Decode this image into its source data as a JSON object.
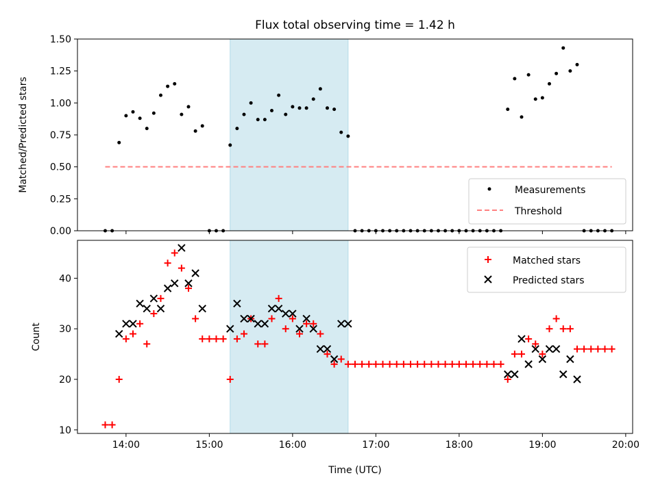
{
  "chart_data": [
    {
      "type": "scatter",
      "title": "Flux total observing time = 1.42 h",
      "xlabel": "",
      "ylabel": "Matched/Predicted stars",
      "ylim": [
        0,
        1.5
      ],
      "xlim": [
        "13:25",
        "20:05"
      ],
      "yticks": [
        "0.00",
        "0.25",
        "0.50",
        "0.75",
        "1.00",
        "1.25",
        "1.50"
      ],
      "yticks_values": [
        0,
        0.25,
        0.5,
        0.75,
        1.0,
        1.25,
        1.5
      ],
      "shaded_span": [
        "15:15",
        "16:40"
      ],
      "shaded_color": "#add8e6",
      "legend_placement": "lower right",
      "series": [
        {
          "name": "Measurements",
          "marker": "dot",
          "color": "#000000",
          "x": [
            "13:45",
            "13:50",
            "13:55",
            "14:00",
            "14:05",
            "14:10",
            "14:15",
            "14:20",
            "14:25",
            "14:30",
            "14:35",
            "14:40",
            "14:45",
            "14:50",
            "14:55",
            "15:00",
            "15:05",
            "15:10",
            "15:15",
            "15:20",
            "15:25",
            "15:30",
            "15:35",
            "15:40",
            "15:45",
            "15:50",
            "15:55",
            "16:00",
            "16:05",
            "16:10",
            "16:15",
            "16:20",
            "16:25",
            "16:30",
            "16:35",
            "16:40",
            "16:45",
            "16:50",
            "16:55",
            "17:00",
            "17:05",
            "17:10",
            "17:15",
            "17:20",
            "17:25",
            "17:30",
            "17:35",
            "17:40",
            "17:45",
            "17:50",
            "17:55",
            "18:00",
            "18:05",
            "18:10",
            "18:15",
            "18:20",
            "18:25",
            "18:30",
            "18:35",
            "18:40",
            "18:45",
            "18:50",
            "18:55",
            "19:00",
            "19:05",
            "19:10",
            "19:15",
            "19:20",
            "19:25",
            "19:30",
            "19:35",
            "19:40",
            "19:45",
            "19:50"
          ],
          "y": [
            0,
            0,
            0.69,
            0.9,
            0.93,
            0.88,
            0.8,
            0.92,
            1.06,
            1.13,
            1.15,
            0.91,
            0.97,
            0.78,
            0.82,
            0,
            0,
            0,
            0.67,
            0.8,
            0.91,
            1.0,
            0.87,
            0.87,
            0.94,
            1.06,
            0.91,
            0.97,
            0.96,
            0.96,
            1.03,
            1.11,
            0.96,
            0.95,
            0.77,
            0.74,
            0,
            0,
            0,
            0,
            0,
            0,
            0,
            0,
            0,
            0,
            0,
            0,
            0,
            0,
            0,
            0,
            0,
            0,
            0,
            0,
            0,
            0,
            0.95,
            1.19,
            0.89,
            1.22,
            1.03,
            1.04,
            1.15,
            1.23,
            1.43,
            1.25,
            1.3,
            0,
            0,
            0,
            0,
            0
          ]
        },
        {
          "name": "Threshold",
          "marker": "dashed-line",
          "color": "#ff7f7f",
          "x": [
            "13:45",
            "19:50"
          ],
          "y": [
            0.5,
            0.5
          ]
        }
      ]
    },
    {
      "type": "scatter",
      "title": "",
      "xlabel": "Time (UTC)",
      "ylabel": "Count",
      "ylim": [
        9.3,
        47.5
      ],
      "xlim": [
        "13:25",
        "20:05"
      ],
      "xticks": [
        "14:00",
        "15:00",
        "16:00",
        "17:00",
        "18:00",
        "19:00",
        "20:00"
      ],
      "yticks": [
        "10",
        "20",
        "30",
        "40"
      ],
      "yticks_values": [
        10,
        20,
        30,
        40
      ],
      "shaded_span": [
        "15:15",
        "16:40"
      ],
      "shaded_color": "#add8e6",
      "legend_placement": "upper right",
      "series": [
        {
          "name": "Matched stars",
          "marker": "plus",
          "color": "#ff0000",
          "x": [
            "13:45",
            "13:50",
            "13:55",
            "14:00",
            "14:05",
            "14:10",
            "14:15",
            "14:20",
            "14:25",
            "14:30",
            "14:35",
            "14:40",
            "14:45",
            "14:50",
            "14:55",
            "15:00",
            "15:05",
            "15:10",
            "15:15",
            "15:20",
            "15:25",
            "15:30",
            "15:35",
            "15:40",
            "15:45",
            "15:50",
            "15:55",
            "16:00",
            "16:05",
            "16:10",
            "16:15",
            "16:20",
            "16:25",
            "16:30",
            "16:35",
            "16:40",
            "16:45",
            "16:50",
            "16:55",
            "17:00",
            "17:05",
            "17:10",
            "17:15",
            "17:20",
            "17:25",
            "17:30",
            "17:35",
            "17:40",
            "17:45",
            "17:50",
            "17:55",
            "18:00",
            "18:05",
            "18:10",
            "18:15",
            "18:20",
            "18:25",
            "18:30",
            "18:35",
            "18:40",
            "18:45",
            "18:50",
            "18:55",
            "19:00",
            "19:05",
            "19:10",
            "19:15",
            "19:20",
            "19:25",
            "19:30",
            "19:35",
            "19:40",
            "19:45",
            "19:50"
          ],
          "y": [
            11,
            11,
            20,
            28,
            29,
            31,
            27,
            33,
            36,
            43,
            45,
            42,
            38,
            32,
            28,
            28,
            28,
            28,
            20,
            28,
            29,
            32,
            27,
            27,
            32,
            36,
            30,
            32,
            29,
            31,
            31,
            29,
            25,
            23,
            24,
            23,
            23,
            23,
            23,
            23,
            23,
            23,
            23,
            23,
            23,
            23,
            23,
            23,
            23,
            23,
            23,
            23,
            23,
            23,
            23,
            23,
            23,
            23,
            20,
            25,
            25,
            28,
            27,
            25,
            30,
            32,
            30,
            30,
            26,
            26,
            26,
            26,
            26,
            26
          ]
        },
        {
          "name": "Predicted stars",
          "marker": "x",
          "color": "#000000",
          "x": [
            "13:55",
            "14:00",
            "14:05",
            "14:10",
            "14:15",
            "14:20",
            "14:25",
            "14:30",
            "14:35",
            "14:40",
            "14:45",
            "14:50",
            "14:55",
            "15:15",
            "15:20",
            "15:25",
            "15:30",
            "15:35",
            "15:40",
            "15:45",
            "15:50",
            "15:55",
            "16:00",
            "16:05",
            "16:10",
            "16:15",
            "16:20",
            "16:25",
            "16:30",
            "16:35",
            "16:40",
            "18:35",
            "18:40",
            "18:45",
            "18:50",
            "18:55",
            "19:00",
            "19:05",
            "19:10",
            "19:15",
            "19:20",
            "19:25"
          ],
          "y": [
            29,
            31,
            31,
            35,
            34,
            36,
            34,
            38,
            39,
            46,
            39,
            41,
            34,
            30,
            35,
            32,
            32,
            31,
            31,
            34,
            34,
            33,
            33,
            30,
            32,
            30,
            26,
            26,
            24,
            31,
            31,
            21,
            21,
            28,
            23,
            26,
            24,
            26,
            26,
            21,
            24,
            20
          ]
        }
      ]
    }
  ]
}
